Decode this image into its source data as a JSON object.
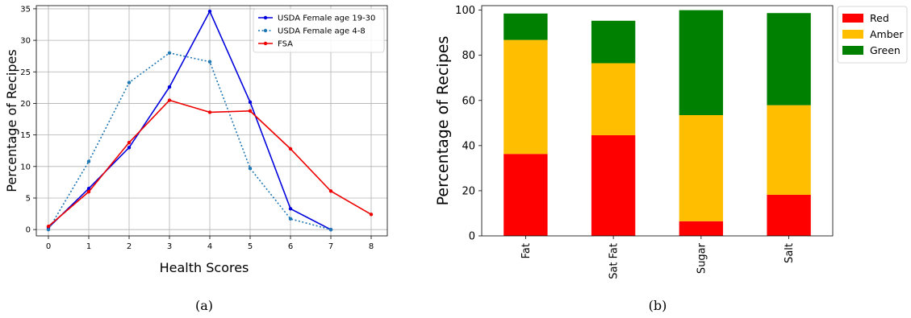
{
  "chart_data": [
    {
      "type": "line",
      "xlabel": "Health Scores",
      "ylabel": "Percentage of Recipes",
      "caption": "(a)",
      "xlim": [
        -0.3,
        8.4
      ],
      "ylim": [
        -1,
        35.5
      ],
      "xticks": [
        0,
        1,
        2,
        3,
        4,
        5,
        6,
        7,
        8
      ],
      "yticks": [
        0,
        5,
        10,
        15,
        20,
        25,
        30,
        35
      ],
      "grid": true,
      "legend": "top-right",
      "series": [
        {
          "name": "USDA Female age 19-30",
          "color": "#0000dd",
          "style": "solid",
          "x": [
            0,
            1,
            2,
            3,
            4,
            5,
            6,
            7
          ],
          "y": [
            0.3,
            6.5,
            13.0,
            22.6,
            34.6,
            20.2,
            3.3,
            0.0
          ]
        },
        {
          "name": "USDA Female age 4-8",
          "color": "#1f77b4",
          "style": "dotted",
          "x": [
            0,
            1,
            2,
            3,
            4,
            5,
            6,
            7
          ],
          "y": [
            0.0,
            10.8,
            23.3,
            28.0,
            26.6,
            9.7,
            1.7,
            0.0
          ]
        },
        {
          "name": "FSA",
          "color": "#ee0000",
          "style": "solid",
          "x": [
            0,
            1,
            2,
            3,
            4,
            5,
            6,
            7,
            8
          ],
          "y": [
            0.5,
            6.0,
            13.8,
            20.5,
            18.6,
            18.8,
            12.8,
            6.1,
            2.4
          ]
        }
      ]
    },
    {
      "type": "bar",
      "stacked": true,
      "ylabel": "Percentage of Recipes",
      "caption": "(b)",
      "categories": [
        "Fat",
        "Sat Fat",
        "Sugar",
        "Salt"
      ],
      "ylim": [
        0,
        102
      ],
      "yticks": [
        0,
        20,
        40,
        60,
        80,
        100
      ],
      "grid": false,
      "legend": "top-right outside",
      "series": [
        {
          "name": "Red",
          "color": "#ff0000",
          "values": [
            36.3,
            44.6,
            6.5,
            18.2
          ]
        },
        {
          "name": "Amber",
          "color": "#ffbf00",
          "values": [
            50.5,
            31.9,
            47.0,
            39.7
          ]
        },
        {
          "name": "Green",
          "color": "#008000",
          "values": [
            11.7,
            18.8,
            46.5,
            40.8
          ]
        }
      ]
    }
  ]
}
